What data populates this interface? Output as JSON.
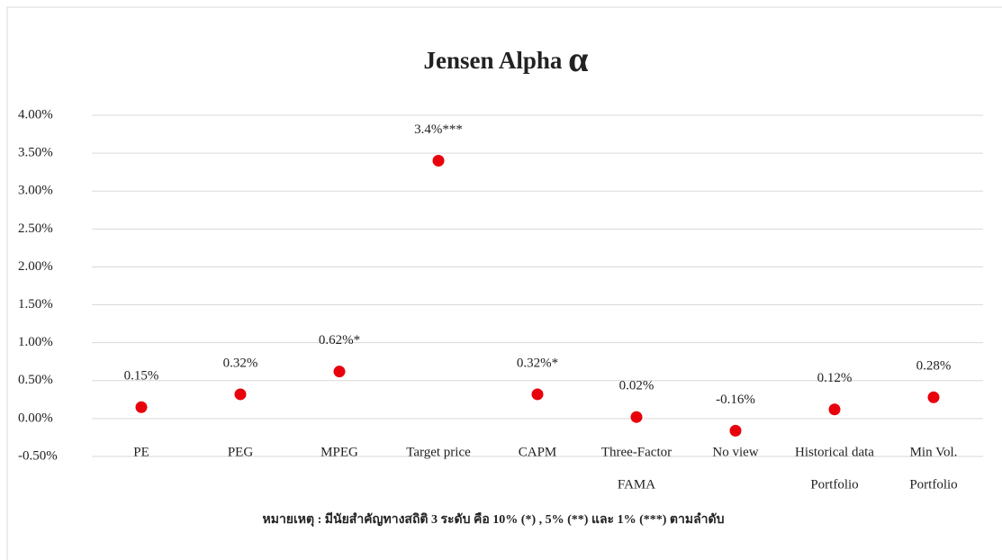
{
  "chart_data": {
    "type": "scatter",
    "title": "Jensen Alpha",
    "title_symbol": "α",
    "categories": [
      [
        "PE"
      ],
      [
        "PEG"
      ],
      [
        "MPEG"
      ],
      [
        "Target price"
      ],
      [
        "CAPM"
      ],
      [
        "Three-Factor",
        "FAMA"
      ],
      [
        "No view"
      ],
      [
        "Historical data",
        "Portfolio"
      ],
      [
        "Min Vol.",
        "Portfolio"
      ]
    ],
    "values": [
      0.15,
      0.32,
      0.62,
      3.4,
      0.32,
      0.02,
      -0.16,
      0.12,
      0.28
    ],
    "value_labels": [
      "0.15%",
      "0.32%",
      "0.62%*",
      "3.4%***",
      "0.32%*",
      "0.02%",
      "-0.16%",
      "0.12%",
      "0.28%"
    ],
    "color": "#e8000b",
    "ylim": [
      -0.5,
      4.0
    ],
    "yticks": [
      {
        "value": -0.5,
        "label": "-0.50%"
      },
      {
        "value": 0,
        "label": "0.00%"
      },
      {
        "value": 0.5,
        "label": "0.50%"
      },
      {
        "value": 1.0,
        "label": "1.00%"
      },
      {
        "value": 1.5,
        "label": "1.50%"
      },
      {
        "value": 2.0,
        "label": "2.00%"
      },
      {
        "value": 2.5,
        "label": "2.50%"
      },
      {
        "value": 3.0,
        "label": "3.00%"
      },
      {
        "value": 3.5,
        "label": "3.50%"
      },
      {
        "value": 4.0,
        "label": "4.00%"
      }
    ],
    "grid": true,
    "note": "หมายเหตุ : มีนัยสำคัญทางสถิติ 3 ระดับ คือ 10% (*) , 5% (**) และ 1% (***)  ตามลำดับ"
  }
}
